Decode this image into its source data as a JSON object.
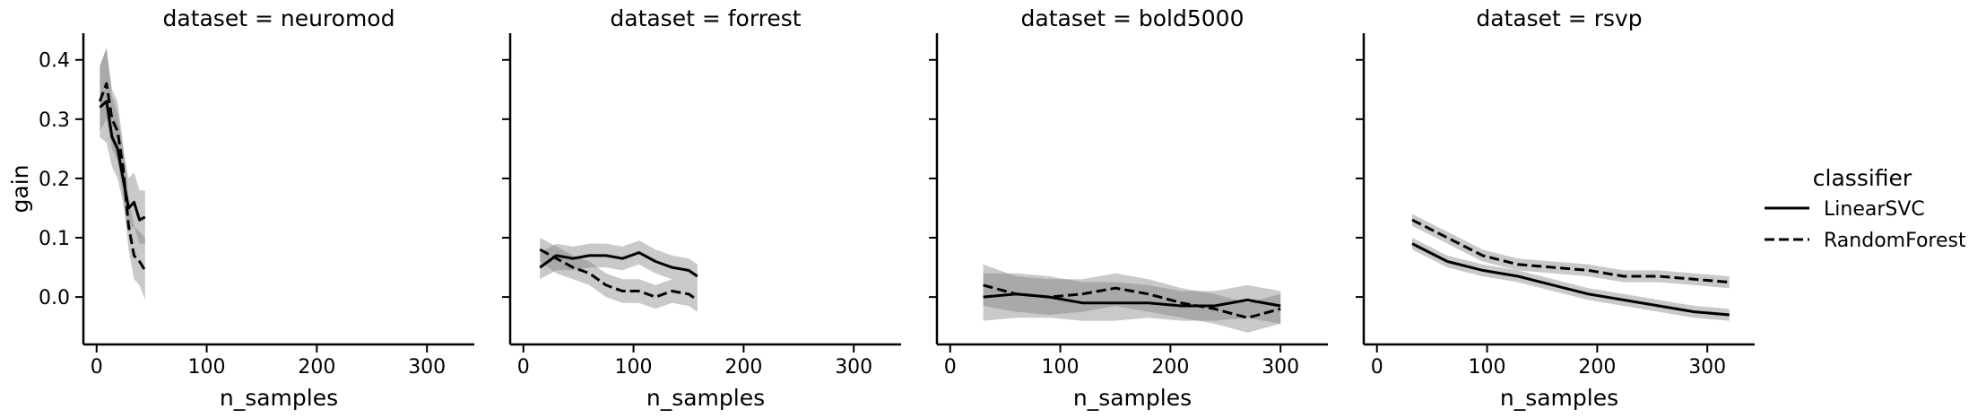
{
  "chart_data": {
    "type": "line",
    "facet_variable": "dataset",
    "xlabel": "n_samples",
    "ylabel": "gain",
    "xlim": [
      -12,
      343
    ],
    "ylim": [
      -0.08,
      0.445
    ],
    "x_ticks": [
      0,
      100,
      200,
      300
    ],
    "y_ticks": [
      0.0,
      0.1,
      0.2,
      0.3,
      0.4
    ],
    "x_tick_labels": [
      "0",
      "100",
      "200",
      "300"
    ],
    "y_tick_labels": [
      "0.0",
      "0.1",
      "0.2",
      "0.3",
      "0.4"
    ],
    "grid": false,
    "shared_y": true,
    "legend": {
      "title": "classifier",
      "placement": "right",
      "entries": [
        {
          "label": "LinearSVC",
          "dash": "solid"
        },
        {
          "label": "RandomForest",
          "dash": "dashed"
        }
      ]
    },
    "colors": {
      "line": "#000000",
      "band": "#7f7f7f"
    },
    "facets": [
      {
        "title": "dataset = neuromod",
        "series": [
          {
            "name": "LinearSVC",
            "dash": "solid",
            "x": [
              3,
              9,
              14,
              19,
              24,
              29,
              34,
              39,
              44
            ],
            "y": [
              0.32,
              0.33,
              0.27,
              0.25,
              0.2,
              0.15,
              0.16,
              0.13,
              0.135
            ],
            "lo": [
              0.27,
              0.26,
              0.22,
              0.2,
              0.16,
              0.11,
              0.12,
              0.09,
              0.09
            ],
            "hi": [
              0.39,
              0.42,
              0.34,
              0.31,
              0.25,
              0.2,
              0.21,
              0.18,
              0.18
            ]
          },
          {
            "name": "RandomForest",
            "dash": "dashed",
            "x": [
              3,
              9,
              14,
              19,
              24,
              29,
              34,
              39,
              44
            ],
            "y": [
              0.33,
              0.36,
              0.3,
              0.28,
              0.22,
              0.12,
              0.07,
              0.06,
              0.045
            ],
            "lo": [
              0.28,
              0.3,
              0.25,
              0.23,
              0.17,
              0.08,
              0.03,
              0.02,
              -0.005
            ],
            "hi": [
              0.39,
              0.42,
              0.35,
              0.33,
              0.26,
              0.17,
              0.12,
              0.11,
              0.1
            ]
          }
        ]
      },
      {
        "title": "dataset = forrest",
        "series": [
          {
            "name": "LinearSVC",
            "dash": "solid",
            "x": [
              15,
              30,
              45,
              60,
              75,
              90,
              105,
              120,
              135,
              150,
              158
            ],
            "y": [
              0.05,
              0.07,
              0.065,
              0.07,
              0.07,
              0.065,
              0.075,
              0.06,
              0.05,
              0.045,
              0.035
            ],
            "lo": [
              0.03,
              0.045,
              0.045,
              0.05,
              0.05,
              0.045,
              0.055,
              0.04,
              0.03,
              0.025,
              0.015
            ],
            "hi": [
              0.075,
              0.09,
              0.085,
              0.09,
              0.09,
              0.085,
              0.095,
              0.08,
              0.07,
              0.065,
              0.055
            ]
          },
          {
            "name": "RandomForest",
            "dash": "dashed",
            "x": [
              15,
              30,
              45,
              60,
              75,
              90,
              105,
              120,
              135,
              150,
              158
            ],
            "y": [
              0.08,
              0.065,
              0.05,
              0.04,
              0.02,
              0.01,
              0.01,
              0.0,
              0.01,
              0.005,
              -0.005
            ],
            "lo": [
              0.06,
              0.04,
              0.03,
              0.02,
              0.0,
              -0.01,
              -0.01,
              -0.02,
              -0.01,
              -0.015,
              -0.025
            ],
            "hi": [
              0.1,
              0.085,
              0.07,
              0.06,
              0.04,
              0.03,
              0.03,
              0.02,
              0.03,
              0.025,
              0.015
            ]
          }
        ]
      },
      {
        "title": "dataset = bold5000",
        "series": [
          {
            "name": "LinearSVC",
            "dash": "solid",
            "x": [
              30,
              60,
              90,
              120,
              150,
              180,
              210,
              240,
              270,
              300
            ],
            "y": [
              0.0,
              0.005,
              0.0,
              -0.01,
              -0.01,
              -0.01,
              -0.015,
              -0.015,
              -0.005,
              -0.015
            ],
            "lo": [
              -0.04,
              -0.035,
              -0.035,
              -0.04,
              -0.04,
              -0.035,
              -0.04,
              -0.04,
              -0.035,
              -0.045
            ],
            "hi": [
              0.04,
              0.04,
              0.035,
              0.025,
              0.025,
              0.02,
              0.01,
              0.01,
              0.02,
              0.01
            ]
          },
          {
            "name": "RandomForest",
            "dash": "dashed",
            "x": [
              30,
              60,
              90,
              120,
              150,
              180,
              210,
              240,
              270,
              300
            ],
            "y": [
              0.02,
              0.005,
              0.0,
              0.005,
              0.015,
              0.005,
              -0.01,
              -0.02,
              -0.035,
              -0.02
            ],
            "lo": [
              -0.015,
              -0.025,
              -0.03,
              -0.025,
              -0.015,
              -0.025,
              -0.035,
              -0.045,
              -0.06,
              -0.045
            ],
            "hi": [
              0.055,
              0.035,
              0.03,
              0.03,
              0.04,
              0.03,
              0.015,
              0.005,
              -0.01,
              0.005
            ]
          }
        ]
      },
      {
        "title": "dataset = rsvp",
        "series": [
          {
            "name": "LinearSVC",
            "dash": "solid",
            "x": [
              32,
              64,
              96,
              128,
              160,
              192,
              224,
              256,
              288,
              320
            ],
            "y": [
              0.09,
              0.06,
              0.045,
              0.035,
              0.02,
              0.005,
              -0.005,
              -0.015,
              -0.025,
              -0.03
            ],
            "lo": [
              0.08,
              0.05,
              0.035,
              0.025,
              0.01,
              -0.005,
              -0.015,
              -0.025,
              -0.035,
              -0.04
            ],
            "hi": [
              0.1,
              0.07,
              0.055,
              0.045,
              0.03,
              0.015,
              0.005,
              -0.005,
              -0.015,
              -0.02
            ]
          },
          {
            "name": "RandomForest",
            "dash": "dashed",
            "x": [
              32,
              64,
              96,
              128,
              160,
              192,
              224,
              256,
              288,
              320
            ],
            "y": [
              0.13,
              0.1,
              0.07,
              0.055,
              0.05,
              0.045,
              0.035,
              0.035,
              0.03,
              0.025
            ],
            "lo": [
              0.12,
              0.09,
              0.06,
              0.045,
              0.04,
              0.035,
              0.025,
              0.025,
              0.02,
              0.015
            ],
            "hi": [
              0.14,
              0.11,
              0.08,
              0.065,
              0.06,
              0.055,
              0.045,
              0.045,
              0.04,
              0.035
            ]
          }
        ]
      }
    ]
  }
}
